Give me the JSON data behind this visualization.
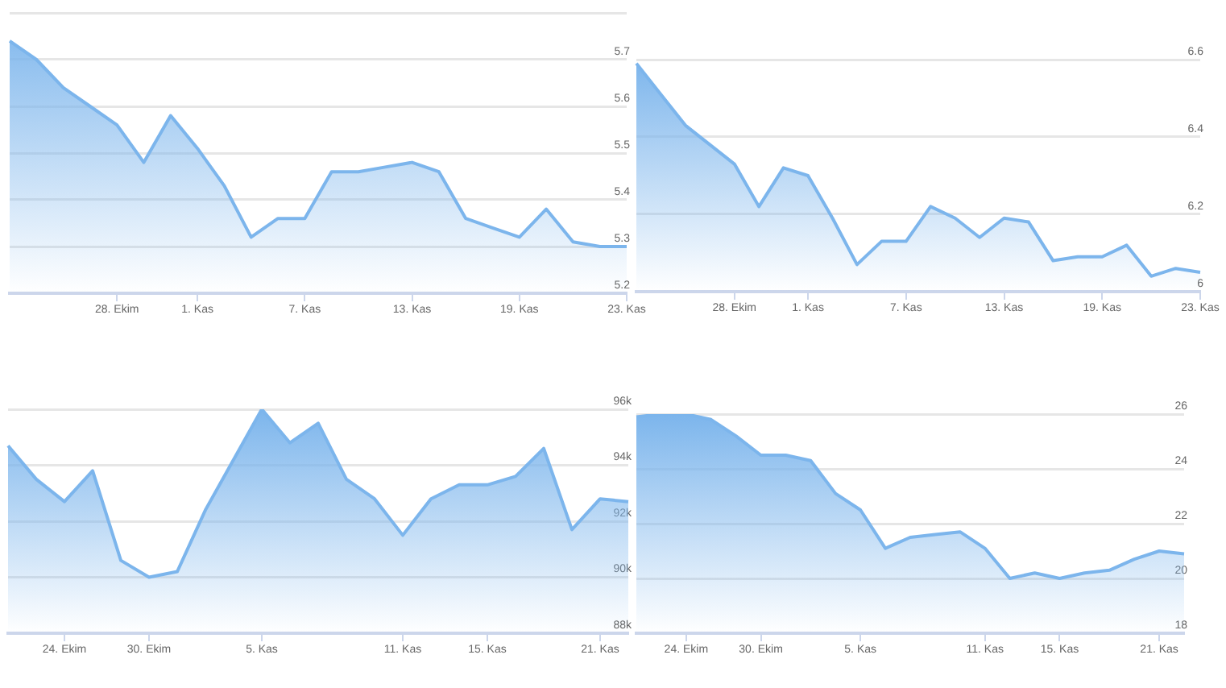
{
  "chart_data": [
    {
      "type": "area",
      "color": "#7cb5ec",
      "grid": "y",
      "marker": "none",
      "categories": [
        null,
        null,
        null,
        null,
        "28. Ekim",
        null,
        null,
        "1. Kas",
        null,
        null,
        null,
        "7. Kas",
        null,
        null,
        null,
        "13. Kas",
        null,
        null,
        null,
        "19. Kas",
        null,
        null,
        null,
        "23. Kas"
      ],
      "values": [
        5.74,
        5.7,
        5.64,
        5.6,
        5.56,
        5.48,
        5.58,
        5.51,
        5.43,
        5.32,
        5.36,
        5.36,
        5.46,
        5.46,
        5.47,
        5.48,
        5.46,
        5.36,
        5.34,
        5.32,
        5.38,
        5.31,
        5.3,
        5.3
      ],
      "ylim": [
        5.2,
        5.8
      ],
      "yticks": [
        5.2,
        5.3,
        5.4,
        5.5,
        5.6,
        5.7,
        {
          "value": 5.8,
          "label": null
        }
      ]
    },
    {
      "type": "area",
      "color": "#7cb5ec",
      "grid": "y",
      "marker": "none",
      "categories": [
        null,
        null,
        null,
        null,
        "28. Ekim",
        null,
        null,
        "1. Kas",
        null,
        null,
        null,
        "7. Kas",
        null,
        null,
        null,
        "13. Kas",
        null,
        null,
        null,
        "19. Kas",
        null,
        null,
        null,
        "23. Kas"
      ],
      "values": [
        6.59,
        6.51,
        6.43,
        6.38,
        6.33,
        6.22,
        6.32,
        6.3,
        6.19,
        6.07,
        6.13,
        6.13,
        6.22,
        6.19,
        6.14,
        6.19,
        6.18,
        6.08,
        6.09,
        6.09,
        6.12,
        6.04,
        6.06,
        6.05
      ],
      "ylim": [
        6,
        6.6
      ],
      "yticks": [
        6,
        6.2,
        6.4,
        6.6
      ]
    },
    {
      "type": "area",
      "color": "#7cb5ec",
      "grid": "y",
      "marker": "none",
      "categories": [
        null,
        null,
        "24. Ekim",
        null,
        null,
        "30. Ekim",
        null,
        null,
        null,
        "5. Kas",
        null,
        null,
        null,
        null,
        "11. Kas",
        null,
        null,
        "15. Kas",
        null,
        null,
        null,
        "21. Kas",
        null
      ],
      "values": [
        94700,
        93500,
        92700,
        93800,
        90600,
        90000,
        90200,
        92400,
        94200,
        96000,
        94800,
        95500,
        93500,
        92800,
        91500,
        92800,
        93300,
        93300,
        93600,
        94600,
        91700,
        92800,
        92700
      ],
      "ylim": [
        88000,
        96000
      ],
      "yticks": [
        {
          "value": 88000,
          "label": "88k"
        },
        {
          "value": 90000,
          "label": "90k"
        },
        {
          "value": 92000,
          "label": "92k"
        },
        {
          "value": 94000,
          "label": "94k"
        },
        {
          "value": 96000,
          "label": "96k"
        }
      ]
    },
    {
      "type": "area",
      "color": "#7cb5ec",
      "grid": "y",
      "marker": "none",
      "categories": [
        null,
        null,
        "24. Ekim",
        null,
        null,
        "30. Ekim",
        null,
        null,
        null,
        "5. Kas",
        null,
        null,
        null,
        null,
        "11. Kas",
        null,
        null,
        "15. Kas",
        null,
        null,
        null,
        "21. Kas",
        null
      ],
      "values": [
        25.9,
        26.0,
        26.0,
        25.8,
        25.2,
        24.5,
        24.5,
        24.3,
        23.1,
        22.5,
        21.1,
        21.5,
        21.6,
        21.7,
        21.1,
        20.0,
        20.2,
        20.0,
        20.2,
        20.3,
        20.7,
        21.0,
        20.9
      ],
      "ylim": [
        18,
        26
      ],
      "yticks": [
        18,
        20,
        22,
        24,
        26
      ]
    }
  ]
}
